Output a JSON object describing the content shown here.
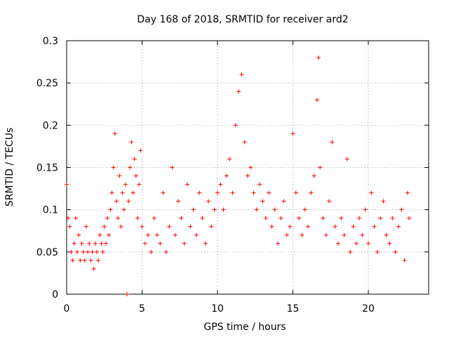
{
  "chart_data": {
    "type": "scatter",
    "title": "Day 168 of 2018, SRMTID for receiver ard2",
    "xlabel": "GPS time / hours",
    "ylabel": "SRMTID / TECUs",
    "xlim": [
      0,
      24
    ],
    "ylim": [
      0,
      0.3
    ],
    "xticks": [
      0,
      5,
      10,
      15,
      20
    ],
    "xtick_labels": [
      "0",
      "5",
      "10",
      "15",
      "20"
    ],
    "yticks": [
      0,
      0.05,
      0.1,
      0.15,
      0.2,
      0.25,
      0.3
    ],
    "ytick_labels": [
      "0",
      "0.05",
      "0.1",
      "0.15",
      "0.2",
      "0.25",
      "0.3"
    ],
    "grid": true,
    "marker": "+",
    "color": "#ff0000",
    "series": [
      {
        "name": "SRMTID",
        "x": [
          0.0,
          0.1,
          0.2,
          0.3,
          0.4,
          0.5,
          0.6,
          0.7,
          0.8,
          0.9,
          1.0,
          1.1,
          1.2,
          1.3,
          1.4,
          1.5,
          1.6,
          1.7,
          1.8,
          1.9,
          2.0,
          2.1,
          2.2,
          2.3,
          2.4,
          2.5,
          2.6,
          2.7,
          2.8,
          2.9,
          3.0,
          3.1,
          3.2,
          3.3,
          3.4,
          3.5,
          3.6,
          3.7,
          3.8,
          3.9,
          4.0,
          4.1,
          4.2,
          4.3,
          4.4,
          4.5,
          4.6,
          4.7,
          4.8,
          4.9,
          5.0,
          5.2,
          5.4,
          5.6,
          5.8,
          6.0,
          6.2,
          6.4,
          6.6,
          6.8,
          7.0,
          7.2,
          7.4,
          7.6,
          7.8,
          8.0,
          8.2,
          8.4,
          8.6,
          8.8,
          9.0,
          9.2,
          9.4,
          9.6,
          9.8,
          10.0,
          10.2,
          10.4,
          10.6,
          10.8,
          11.0,
          11.2,
          11.4,
          11.6,
          11.8,
          12.0,
          12.2,
          12.4,
          12.6,
          12.8,
          13.0,
          13.2,
          13.4,
          13.6,
          13.8,
          14.0,
          14.2,
          14.4,
          14.6,
          14.8,
          15.0,
          15.2,
          15.4,
          15.6,
          15.8,
          16.0,
          16.2,
          16.4,
          16.6,
          16.7,
          16.8,
          17.0,
          17.2,
          17.4,
          17.6,
          17.8,
          18.0,
          18.2,
          18.4,
          18.6,
          18.8,
          19.0,
          19.2,
          19.4,
          19.6,
          19.8,
          20.0,
          20.2,
          20.4,
          20.6,
          20.8,
          21.0,
          21.2,
          21.4,
          21.6,
          21.8,
          22.0,
          22.2,
          22.4,
          22.6,
          22.7
        ],
        "y": [
          0.13,
          0.09,
          0.08,
          0.05,
          0.04,
          0.06,
          0.09,
          0.05,
          0.07,
          0.04,
          0.06,
          0.05,
          0.04,
          0.08,
          0.05,
          0.06,
          0.04,
          0.05,
          0.03,
          0.06,
          0.05,
          0.04,
          0.07,
          0.06,
          0.05,
          0.08,
          0.06,
          0.09,
          0.07,
          0.1,
          0.12,
          0.15,
          0.19,
          0.11,
          0.09,
          0.14,
          0.08,
          0.12,
          0.1,
          0.13,
          0.0,
          0.11,
          0.15,
          0.18,
          0.12,
          0.16,
          0.14,
          0.09,
          0.13,
          0.17,
          0.08,
          0.06,
          0.07,
          0.05,
          0.09,
          0.07,
          0.06,
          0.12,
          0.05,
          0.08,
          0.15,
          0.07,
          0.11,
          0.09,
          0.06,
          0.13,
          0.08,
          0.1,
          0.07,
          0.12,
          0.09,
          0.06,
          0.11,
          0.08,
          0.1,
          0.12,
          0.13,
          0.1,
          0.14,
          0.16,
          0.12,
          0.2,
          0.24,
          0.26,
          0.18,
          0.14,
          0.15,
          0.12,
          0.1,
          0.13,
          0.11,
          0.09,
          0.12,
          0.08,
          0.1,
          0.06,
          0.09,
          0.11,
          0.07,
          0.08,
          0.19,
          0.12,
          0.09,
          0.07,
          0.1,
          0.08,
          0.12,
          0.14,
          0.23,
          0.28,
          0.15,
          0.09,
          0.07,
          0.11,
          0.18,
          0.08,
          0.06,
          0.09,
          0.07,
          0.16,
          0.05,
          0.08,
          0.06,
          0.09,
          0.07,
          0.1,
          0.06,
          0.12,
          0.08,
          0.05,
          0.09,
          0.11,
          0.07,
          0.06,
          0.09,
          0.05,
          0.08,
          0.1,
          0.04,
          0.12,
          0.09
        ]
      }
    ]
  }
}
